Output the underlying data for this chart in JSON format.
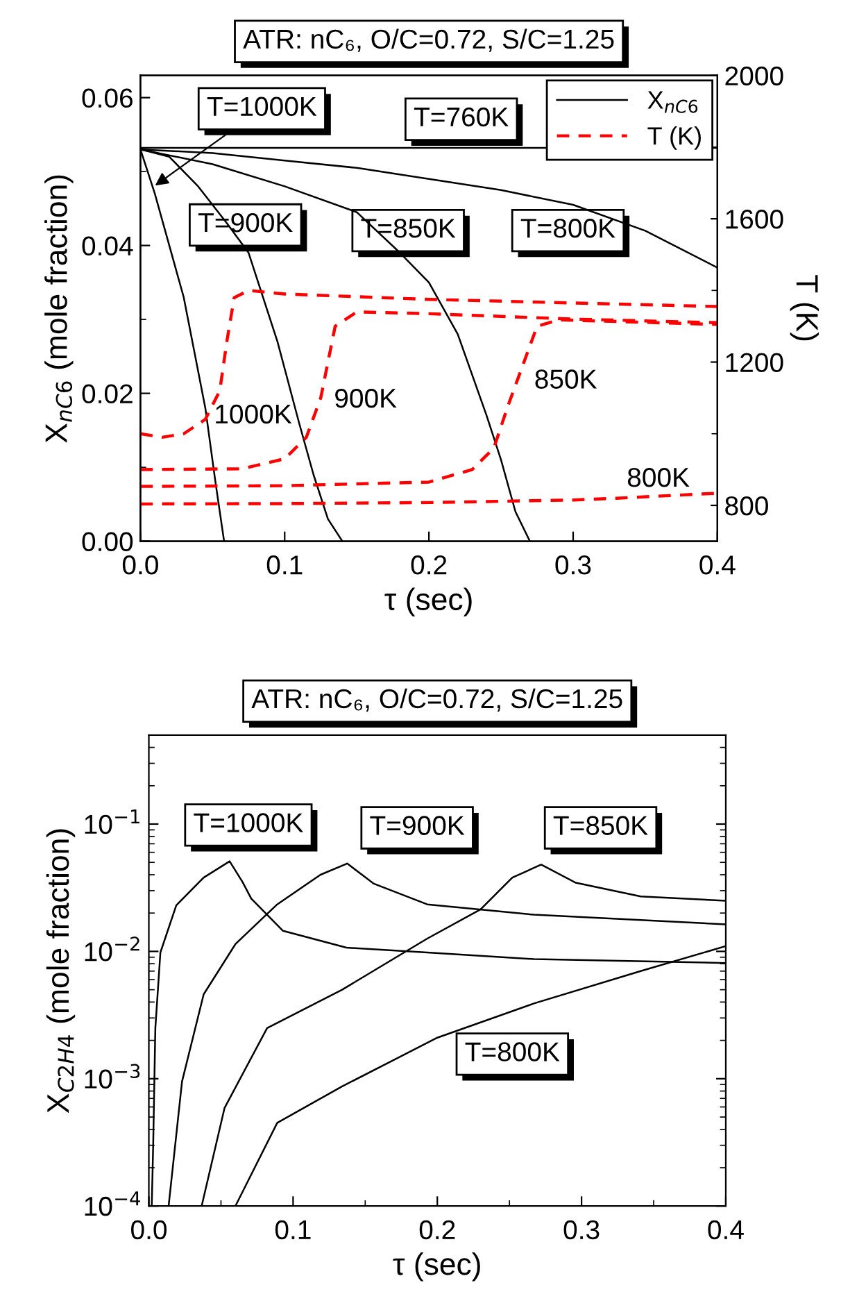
{
  "chart_data": [
    {
      "type": "line",
      "title": "ATR: nC₆, O/C=0.72, S/C=1.25",
      "xlabel": "τ (sec)",
      "ylabel": "X$_{nC6}$ (mole fraction)",
      "y2label": "T (K)",
      "xlim": [
        0,
        0.4
      ],
      "xticks": [
        {
          "value": 0,
          "label": "0.0"
        },
        0.1,
        0.2,
        0.3,
        0.4
      ],
      "ylim": [
        0,
        0.063
      ],
      "yticks": [
        {
          "value": 0,
          "label": "0.00"
        },
        {
          "value": 0.02,
          "label": "0.02"
        },
        {
          "value": 0.04,
          "label": "0.04"
        },
        {
          "value": 0.06,
          "label": "0.06"
        }
      ],
      "y2lim": [
        700,
        2000
      ],
      "y2ticks": [
        800,
        1200,
        1600,
        2000
      ],
      "legend": "top right",
      "series": [
        {
          "name": "X$_{nC6}$",
          "color": "#000000",
          "line_style": "solid",
          "x": [
            0,
            0.4
          ],
          "values": [
            0.0532,
            0.0532
          ]
        },
        {
          "color": "#000000",
          "line_style": "solid",
          "x": [
            0,
            0.01,
            0.03,
            0.045,
            0.052,
            0.058
          ],
          "values": [
            0.053,
            0.047,
            0.033,
            0.018,
            0.008,
            0
          ]
        },
        {
          "color": "#000000",
          "line_style": "solid",
          "x": [
            0,
            0.02,
            0.04,
            0.06,
            0.075,
            0.095,
            0.11,
            0.12,
            0.13,
            0.14
          ],
          "values": [
            0.053,
            0.052,
            0.048,
            0.043,
            0.039,
            0.027,
            0.016,
            0.009,
            0.003,
            0
          ]
        },
        {
          "color": "#000000",
          "line_style": "solid",
          "x": [
            0,
            0.05,
            0.1,
            0.15,
            0.18,
            0.2,
            0.22,
            0.24,
            0.25,
            0.26,
            0.27
          ],
          "values": [
            0.053,
            0.051,
            0.048,
            0.0445,
            0.039,
            0.035,
            0.028,
            0.017,
            0.011,
            0.004,
            0
          ]
        },
        {
          "color": "#000000",
          "line_style": "solid",
          "x": [
            0,
            0.05,
            0.1,
            0.15,
            0.2,
            0.25,
            0.3,
            0.35,
            0.4
          ],
          "values": [
            0.053,
            0.0525,
            0.0515,
            0.0505,
            0.049,
            0.0475,
            0.0455,
            0.042,
            0.037
          ]
        },
        {
          "name": "T (K)",
          "color": "#ff0000",
          "line_style": "dashed",
          "axis": "y2",
          "x": [
            0,
            0.015,
            0.03,
            0.045,
            0.055,
            0.06,
            0.065,
            0.075,
            0.1,
            0.2,
            0.3,
            0.4
          ],
          "values": [
            1000,
            990,
            1000,
            1040,
            1120,
            1260,
            1380,
            1400,
            1390,
            1375,
            1365,
            1355
          ]
        },
        {
          "color": "#ff0000",
          "line_style": "dashed",
          "axis": "y2",
          "x": [
            0,
            0.07,
            0.1,
            0.115,
            0.125,
            0.135,
            0.15,
            0.2,
            0.3,
            0.4
          ],
          "values": [
            900,
            902,
            930,
            990,
            1100,
            1300,
            1340,
            1335,
            1320,
            1310
          ]
        },
        {
          "color": "#ff0000",
          "line_style": "dashed",
          "axis": "y2",
          "x": [
            0,
            0.1,
            0.2,
            0.23,
            0.245,
            0.255,
            0.265,
            0.275,
            0.29,
            0.4
          ],
          "values": [
            853,
            855,
            865,
            900,
            960,
            1080,
            1190,
            1300,
            1318,
            1305
          ]
        },
        {
          "color": "#ff0000",
          "line_style": "dashed",
          "axis": "y2",
          "x": [
            0,
            0.1,
            0.2,
            0.3,
            0.33,
            0.4
          ],
          "values": [
            804,
            805,
            808,
            815,
            820,
            834
          ]
        }
      ],
      "annotations": [
        {
          "text": "T=1000K",
          "x": 0.008,
          "y": 0.0478
        },
        "T=760K",
        "T=900K",
        "T=850K",
        "T=800K",
        "1000K",
        "900K",
        "850K",
        "800K"
      ]
    },
    {
      "type": "line",
      "title": "ATR: nC₆, O/C=0.72, S/C=1.25",
      "xlabel": "τ (sec)",
      "ylabel": "X$_{C2H4}$ (mole fraction)",
      "log": "y",
      "xlim": [
        0,
        0.4
      ],
      "xticks": [
        {
          "value": 0,
          "label": "0.0"
        },
        0.1,
        0.2,
        0.3,
        0.4
      ],
      "ylim": [
        0.0001,
        0.5
      ],
      "yticks": [
        {
          "value": 0.0001,
          "label": "10$^{−4}$"
        },
        {
          "value": 0.001,
          "label": "10$^{−3}$"
        },
        {
          "value": 0.01,
          "label": "10$^{−2}$"
        },
        {
          "value": 0.1,
          "label": "10$^{−1}$"
        }
      ],
      "series": [
        {
          "color": "#000000",
          "line_style": "solid",
          "x": [
            0.002,
            0.003,
            0.0045,
            0.008,
            0.019,
            0.038,
            0.056,
            0.065,
            0.071,
            0.093,
            0.137,
            0.193,
            0.267,
            0.4
          ],
          "values": [
            0.0001,
            0.0003,
            0.0025,
            0.0098,
            0.023,
            0.038,
            0.051,
            0.035,
            0.026,
            0.0145,
            0.0107,
            0.0098,
            0.0087,
            0.0081
          ]
        },
        {
          "color": "#000000",
          "line_style": "solid",
          "x": [
            0.0137,
            0.023,
            0.038,
            0.06,
            0.089,
            0.119,
            0.1375,
            0.156,
            0.193,
            0.267,
            0.4
          ],
          "values": [
            0.0001,
            0.00095,
            0.0046,
            0.0114,
            0.0234,
            0.04,
            0.049,
            0.034,
            0.0234,
            0.0194,
            0.0163
          ]
        },
        {
          "color": "#000000",
          "line_style": "solid",
          "x": [
            0.0366,
            0.0525,
            0.082,
            0.134,
            0.193,
            0.23,
            0.252,
            0.272,
            0.296,
            0.341,
            0.4
          ],
          "values": [
            0.0001,
            0.00059,
            0.0025,
            0.005,
            0.0126,
            0.0214,
            0.038,
            0.048,
            0.0346,
            0.027,
            0.025
          ]
        },
        {
          "color": "#000000",
          "line_style": "solid",
          "x": [
            0.06,
            0.089,
            0.134,
            0.2,
            0.267,
            0.341,
            0.4
          ],
          "values": [
            0.0001,
            0.00045,
            0.00087,
            0.0021,
            0.0039,
            0.007,
            0.011
          ]
        }
      ],
      "annotations": [
        "T=1000K",
        "T=900K",
        "T=850K",
        "T=800K"
      ]
    }
  ]
}
